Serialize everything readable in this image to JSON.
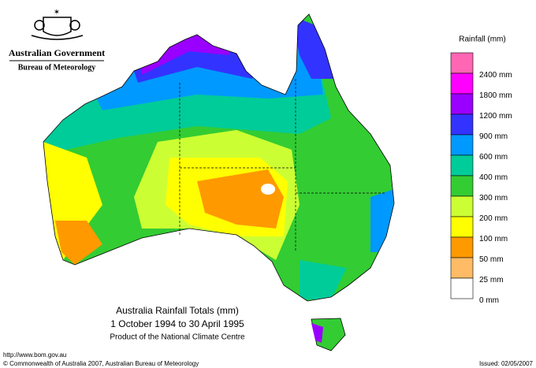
{
  "header": {
    "government": "Australian Government",
    "bureau": "Bureau of Meteorology"
  },
  "legend": {
    "title": "Rainfall (mm)",
    "items": [
      {
        "label": "2400 mm",
        "color": "#ff66b3"
      },
      {
        "label": "1800 mm",
        "color": "#ff00ff"
      },
      {
        "label": "1200 mm",
        "color": "#9900ff"
      },
      {
        "label": "900 mm",
        "color": "#3333ff"
      },
      {
        "label": "600 mm",
        "color": "#0099ff"
      },
      {
        "label": "400 mm",
        "color": "#00cc99"
      },
      {
        "label": "300 mm",
        "color": "#33cc33"
      },
      {
        "label": "200 mm",
        "color": "#ccff33"
      },
      {
        "label": "100 mm",
        "color": "#ffff00"
      },
      {
        "label": "50 mm",
        "color": "#ff9900"
      },
      {
        "label": "25 mm",
        "color": "#ffbb66"
      },
      {
        "label": "0 mm",
        "color": "#ffffff"
      }
    ]
  },
  "map": {
    "title": "Australia Rainfall Totals (mm)",
    "period": "1 October 1994 to 30 April 1995",
    "credit": "Product of the National Climate Centre"
  },
  "footer": {
    "url": "http://www.bom.gov.au",
    "copyright": "© Commonwealth of Australia 2007, Australian Bureau of Meteorology",
    "issued": "Issued: 02/05/2007"
  }
}
